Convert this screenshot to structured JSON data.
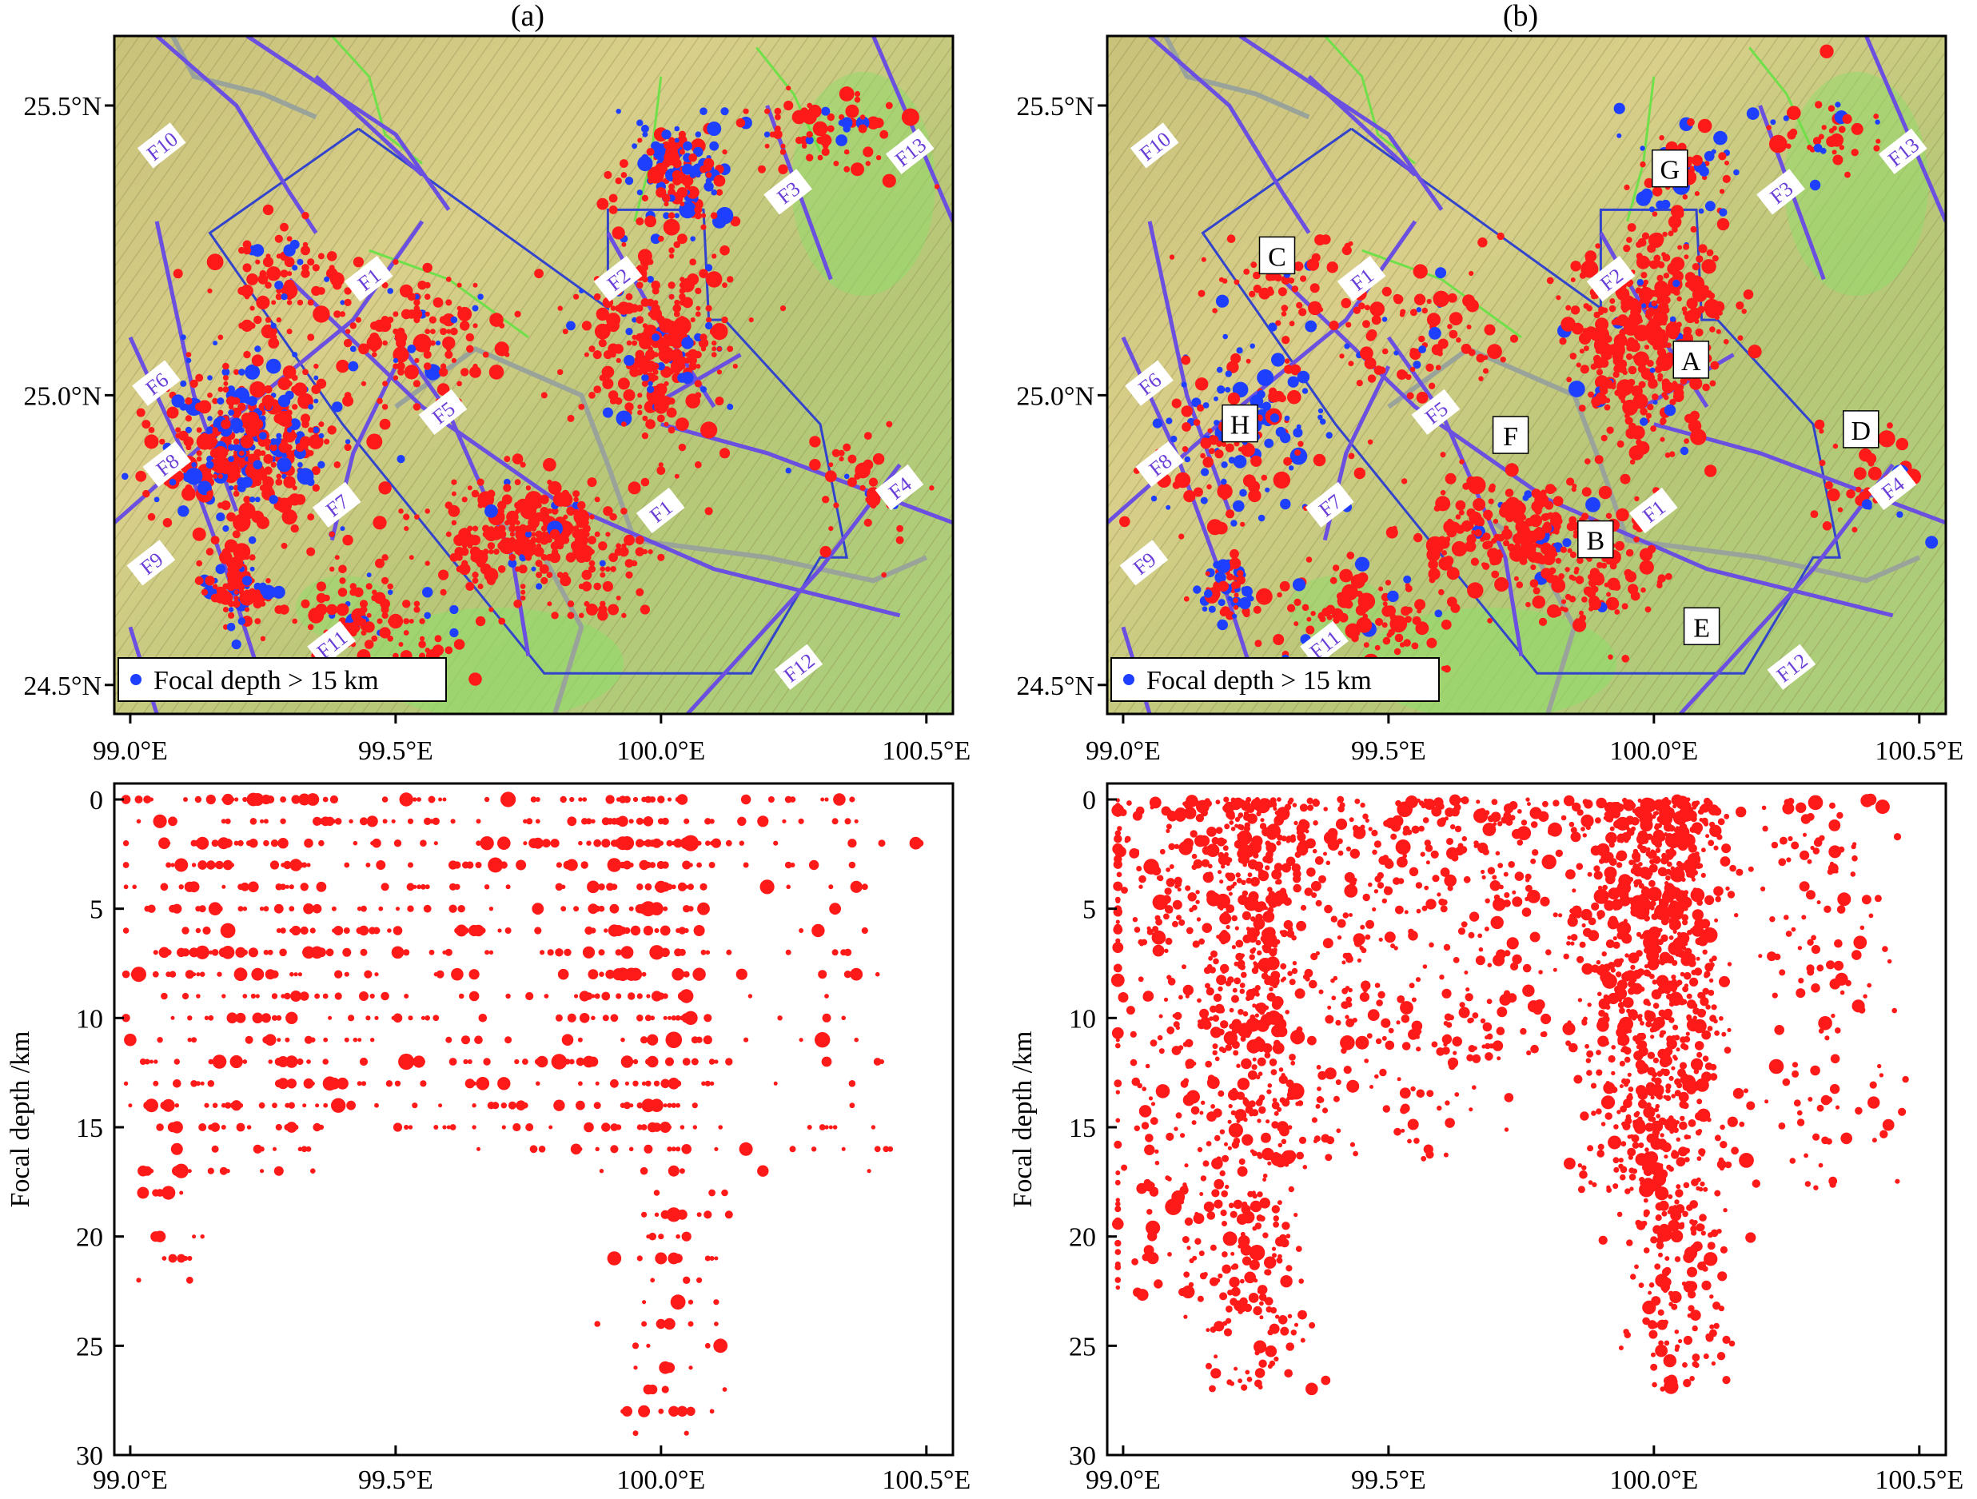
{
  "panels": [
    {
      "id": "a",
      "title": "(a)",
      "faults": [
        {
          "label": "F10",
          "lon": 99.06,
          "lat": 25.43
        },
        {
          "label": "F13",
          "lon": 100.47,
          "lat": 25.42
        },
        {
          "label": "F3",
          "lon": 100.24,
          "lat": 25.35
        },
        {
          "label": "F2",
          "lon": 99.92,
          "lat": 25.2
        },
        {
          "label": "F1",
          "lon": 99.45,
          "lat": 25.2
        },
        {
          "label": "F6",
          "lon": 99.05,
          "lat": 25.02
        },
        {
          "label": "F5",
          "lon": 99.59,
          "lat": 24.97
        },
        {
          "label": "F8",
          "lon": 99.07,
          "lat": 24.88
        },
        {
          "label": "F7",
          "lon": 99.39,
          "lat": 24.81
        },
        {
          "label": "F1",
          "lon": 100.0,
          "lat": 24.8
        },
        {
          "label": "F4",
          "lon": 100.45,
          "lat": 24.84
        },
        {
          "label": "F9",
          "lon": 99.04,
          "lat": 24.71
        },
        {
          "label": "F12",
          "lon": 100.26,
          "lat": 24.53
        },
        {
          "label": "F11",
          "lon": 99.38,
          "lat": 24.57
        }
      ],
      "zones": []
    },
    {
      "id": "b",
      "title": "(b)",
      "faults": [
        {
          "label": "F10",
          "lon": 99.06,
          "lat": 25.43
        },
        {
          "label": "F13",
          "lon": 100.47,
          "lat": 25.42
        },
        {
          "label": "F3",
          "lon": 100.24,
          "lat": 25.35
        },
        {
          "label": "F2",
          "lon": 99.92,
          "lat": 25.2
        },
        {
          "label": "F1",
          "lon": 99.45,
          "lat": 25.2
        },
        {
          "label": "F6",
          "lon": 99.05,
          "lat": 25.02
        },
        {
          "label": "F5",
          "lon": 99.59,
          "lat": 24.97
        },
        {
          "label": "F8",
          "lon": 99.07,
          "lat": 24.88
        },
        {
          "label": "F7",
          "lon": 99.39,
          "lat": 24.81
        },
        {
          "label": "F1",
          "lon": 100.0,
          "lat": 24.8
        },
        {
          "label": "F4",
          "lon": 100.45,
          "lat": 24.84
        },
        {
          "label": "F9",
          "lon": 99.04,
          "lat": 24.71
        },
        {
          "label": "F12",
          "lon": 100.26,
          "lat": 24.53
        },
        {
          "label": "F11",
          "lon": 99.38,
          "lat": 24.57
        }
      ],
      "zones": [
        {
          "label": "G",
          "lon": 100.03,
          "lat": 25.39
        },
        {
          "label": "C",
          "lon": 99.29,
          "lat": 25.24
        },
        {
          "label": "A",
          "lon": 100.07,
          "lat": 25.06
        },
        {
          "label": "H",
          "lon": 99.22,
          "lat": 24.95
        },
        {
          "label": "F",
          "lon": 99.73,
          "lat": 24.93
        },
        {
          "label": "D",
          "lon": 100.39,
          "lat": 24.94
        },
        {
          "label": "B",
          "lon": 99.89,
          "lat": 24.75
        },
        {
          "label": "E",
          "lon": 100.09,
          "lat": 24.6
        }
      ]
    }
  ],
  "legend_label": "Focal depth > 15 km",
  "map_lon_ticks": [
    "99.0°E",
    "99.5°E",
    "100.0°E",
    "100.5°E"
  ],
  "map_lat_ticks": [
    "25.5°N",
    "25.0°N",
    "24.5°N"
  ],
  "depth_ticks": [
    "0",
    "5",
    "10",
    "15",
    "20",
    "25",
    "30"
  ],
  "depth_ylabel": "Focal depth /km",
  "colors": {
    "shallow": "#ff1a1a",
    "deep": "#1f3fff",
    "fault": "#6a4fe0",
    "box": "#3344cc",
    "river_green": "#6fe04a",
    "river_gray": "#9aa39a"
  },
  "chart_data": [
    {
      "type": "scatter",
      "panel": "a",
      "title": "(a)",
      "xlabel": "",
      "ylabel": "Focal depth /km",
      "xlim": [
        99.0,
        100.5
      ],
      "ylim": [
        30,
        0
      ],
      "series": [
        {
          "name": "hypocenters",
          "clusters": [
            {
              "lon": 99.24,
              "spread": 0.1,
              "dmin": 0,
              "dmax": 17,
              "n": 230
            },
            {
              "lon": 99.06,
              "spread": 0.06,
              "dmin": 0,
              "dmax": 22,
              "n": 100
            },
            {
              "lon": 99.45,
              "spread": 0.15,
              "dmin": 0,
              "dmax": 16,
              "n": 160
            },
            {
              "lon": 99.7,
              "spread": 0.12,
              "dmin": 0,
              "dmax": 16,
              "n": 120
            },
            {
              "lon": 99.93,
              "spread": 0.07,
              "dmin": 0,
              "dmax": 16,
              "n": 220
            },
            {
              "lon": 100.03,
              "spread": 0.05,
              "dmin": 0,
              "dmax": 29,
              "n": 200
            },
            {
              "lon": 100.3,
              "spread": 0.1,
              "dmin": 0,
              "dmax": 17,
              "n": 80
            }
          ]
        }
      ]
    },
    {
      "type": "scatter",
      "panel": "b",
      "title": "(b)",
      "xlabel": "",
      "ylabel": "Focal depth /km",
      "xlim": [
        99.0,
        100.5
      ],
      "ylim": [
        30,
        0
      ],
      "series": [
        {
          "name": "hypocenters",
          "clusters": [
            {
              "lon": 99.1,
              "spread": 0.09,
              "dmin": 0,
              "dmax": 23,
              "n": 320
            },
            {
              "lon": 99.25,
              "spread": 0.05,
              "dmin": 0,
              "dmax": 27,
              "n": 500
            },
            {
              "lon": 99.45,
              "spread": 0.12,
              "dmin": 0,
              "dmax": 17,
              "n": 300
            },
            {
              "lon": 99.7,
              "spread": 0.08,
              "dmin": 0,
              "dmax": 12,
              "n": 180
            },
            {
              "lon": 99.95,
              "spread": 0.06,
              "dmin": 0,
              "dmax": 18,
              "n": 400
            },
            {
              "lon": 100.04,
              "spread": 0.05,
              "dmin": 0,
              "dmax": 27,
              "n": 650
            },
            {
              "lon": 100.32,
              "spread": 0.08,
              "dmin": 0,
              "dmax": 18,
              "n": 140
            }
          ]
        }
      ]
    }
  ]
}
